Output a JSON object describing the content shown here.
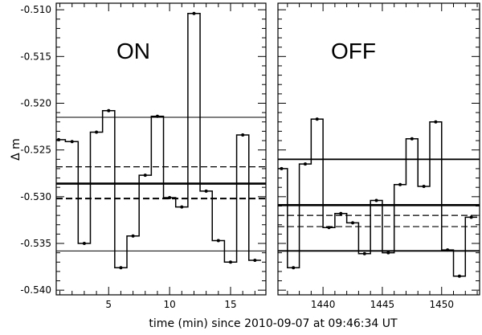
{
  "figure": {
    "xlabel": "time (min) since 2010-09-07 at 09:46:34 UT",
    "ylabel": "Δ m"
  },
  "chart_data": [
    {
      "type": "line",
      "panel_label": "ON",
      "xlim": [
        0.7,
        17.9
      ],
      "ylim": [
        -0.5405,
        -0.5093
      ],
      "xticks": [
        5,
        10,
        15
      ],
      "yticks": [
        -0.54,
        -0.535,
        -0.53,
        -0.525,
        -0.52,
        -0.515,
        -0.51
      ],
      "ytick_labels": [
        "-0.540",
        "-0.535",
        "-0.530",
        "-0.525",
        "-0.520",
        "-0.515",
        "-0.510"
      ],
      "series": [
        {
          "style": "step",
          "x": [
            0.9,
            2.0,
            3.0,
            4.0,
            5.0,
            6.0,
            7.0,
            8.0,
            9.0,
            10.0,
            11.0,
            12.0,
            13.0,
            14.0,
            15.0,
            16.0,
            17.0
          ],
          "values": [
            -0.5239,
            -0.5241,
            -0.535,
            -0.5231,
            -0.5208,
            -0.5376,
            -0.5342,
            -0.5277,
            -0.5214,
            -0.5301,
            -0.5311,
            -0.5104,
            -0.5294,
            -0.5347,
            -0.537,
            -0.5234,
            -0.5368
          ]
        }
      ],
      "hlines": [
        {
          "y": -0.5215,
          "style": "thin-solid"
        },
        {
          "y": -0.5268,
          "style": "dashed"
        },
        {
          "y": -0.5286,
          "style": "thick-solid"
        },
        {
          "y": -0.5302,
          "style": "thick-dashed"
        },
        {
          "y": -0.5358,
          "style": "thin-solid"
        }
      ]
    },
    {
      "type": "line",
      "panel_label": "OFF",
      "xlim": [
        1436.2,
        1453.2
      ],
      "ylim": [
        -0.5405,
        -0.5093
      ],
      "xticks": [
        1440,
        1445,
        1450
      ],
      "yticks": [
        -0.54,
        -0.535,
        -0.53,
        -0.525,
        -0.52,
        -0.515,
        -0.51
      ],
      "series": [
        {
          "style": "step",
          "x": [
            1436.5,
            1437.5,
            1438.5,
            1439.5,
            1440.5,
            1441.5,
            1442.5,
            1443.5,
            1444.5,
            1445.5,
            1446.5,
            1447.5,
            1448.5,
            1449.5,
            1450.5,
            1451.5,
            1452.5
          ],
          "values": [
            -0.527,
            -0.5376,
            -0.5265,
            -0.5217,
            -0.5333,
            -0.5318,
            -0.5328,
            -0.5361,
            -0.5304,
            -0.536,
            -0.5287,
            -0.5238,
            -0.5289,
            -0.522,
            -0.5357,
            -0.5385,
            -0.5322
          ]
        }
      ],
      "hlines": [
        {
          "y": -0.526,
          "style": "solid"
        },
        {
          "y": -0.5309,
          "style": "thick-solid"
        },
        {
          "y": -0.532,
          "style": "dashed"
        },
        {
          "y": -0.5332,
          "style": "dashed"
        },
        {
          "y": -0.5358,
          "style": "solid"
        }
      ]
    }
  ]
}
